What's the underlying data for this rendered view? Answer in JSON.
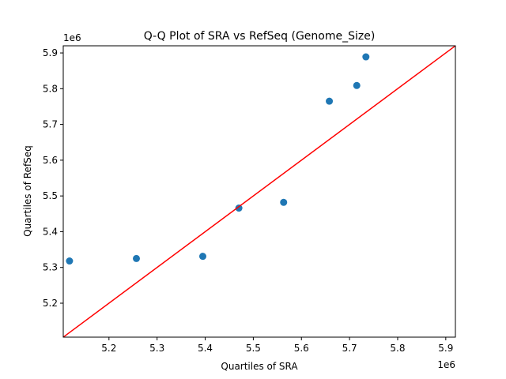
{
  "chart_data": {
    "type": "scatter",
    "title": "Q-Q Plot of SRA vs RefSeq (Genome_Size)",
    "xlabel": "Quartiles of SRA",
    "ylabel": "Quartiles of RefSeq",
    "x_offset_label": "1e6",
    "y_offset_label": "1e6",
    "xlim": [
      5.105,
      5.92
    ],
    "ylim": [
      5.105,
      5.92
    ],
    "x_ticks": [
      5.2,
      5.3,
      5.4,
      5.5,
      5.6,
      5.7,
      5.8,
      5.9
    ],
    "y_ticks": [
      5.2,
      5.3,
      5.4,
      5.5,
      5.6,
      5.7,
      5.8,
      5.9
    ],
    "x_tick_labels": [
      "5.2",
      "5.3",
      "5.4",
      "5.5",
      "5.6",
      "5.7",
      "5.8",
      "5.9"
    ],
    "y_tick_labels": [
      "5.2",
      "5.3",
      "5.4",
      "5.5",
      "5.6",
      "5.7",
      "5.8",
      "5.9"
    ],
    "grid": false,
    "point_color": "#1f77b4",
    "line_color": "#ff0000",
    "points": [
      {
        "x": 5.118,
        "y": 5.318
      },
      {
        "x": 5.257,
        "y": 5.325
      },
      {
        "x": 5.395,
        "y": 5.331
      },
      {
        "x": 5.47,
        "y": 5.466
      },
      {
        "x": 5.563,
        "y": 5.482
      },
      {
        "x": 5.658,
        "y": 5.765
      },
      {
        "x": 5.715,
        "y": 5.809
      },
      {
        "x": 5.734,
        "y": 5.889
      }
    ],
    "reference_line": {
      "x": [
        5.105,
        5.92
      ],
      "y": [
        5.105,
        5.92
      ]
    }
  }
}
